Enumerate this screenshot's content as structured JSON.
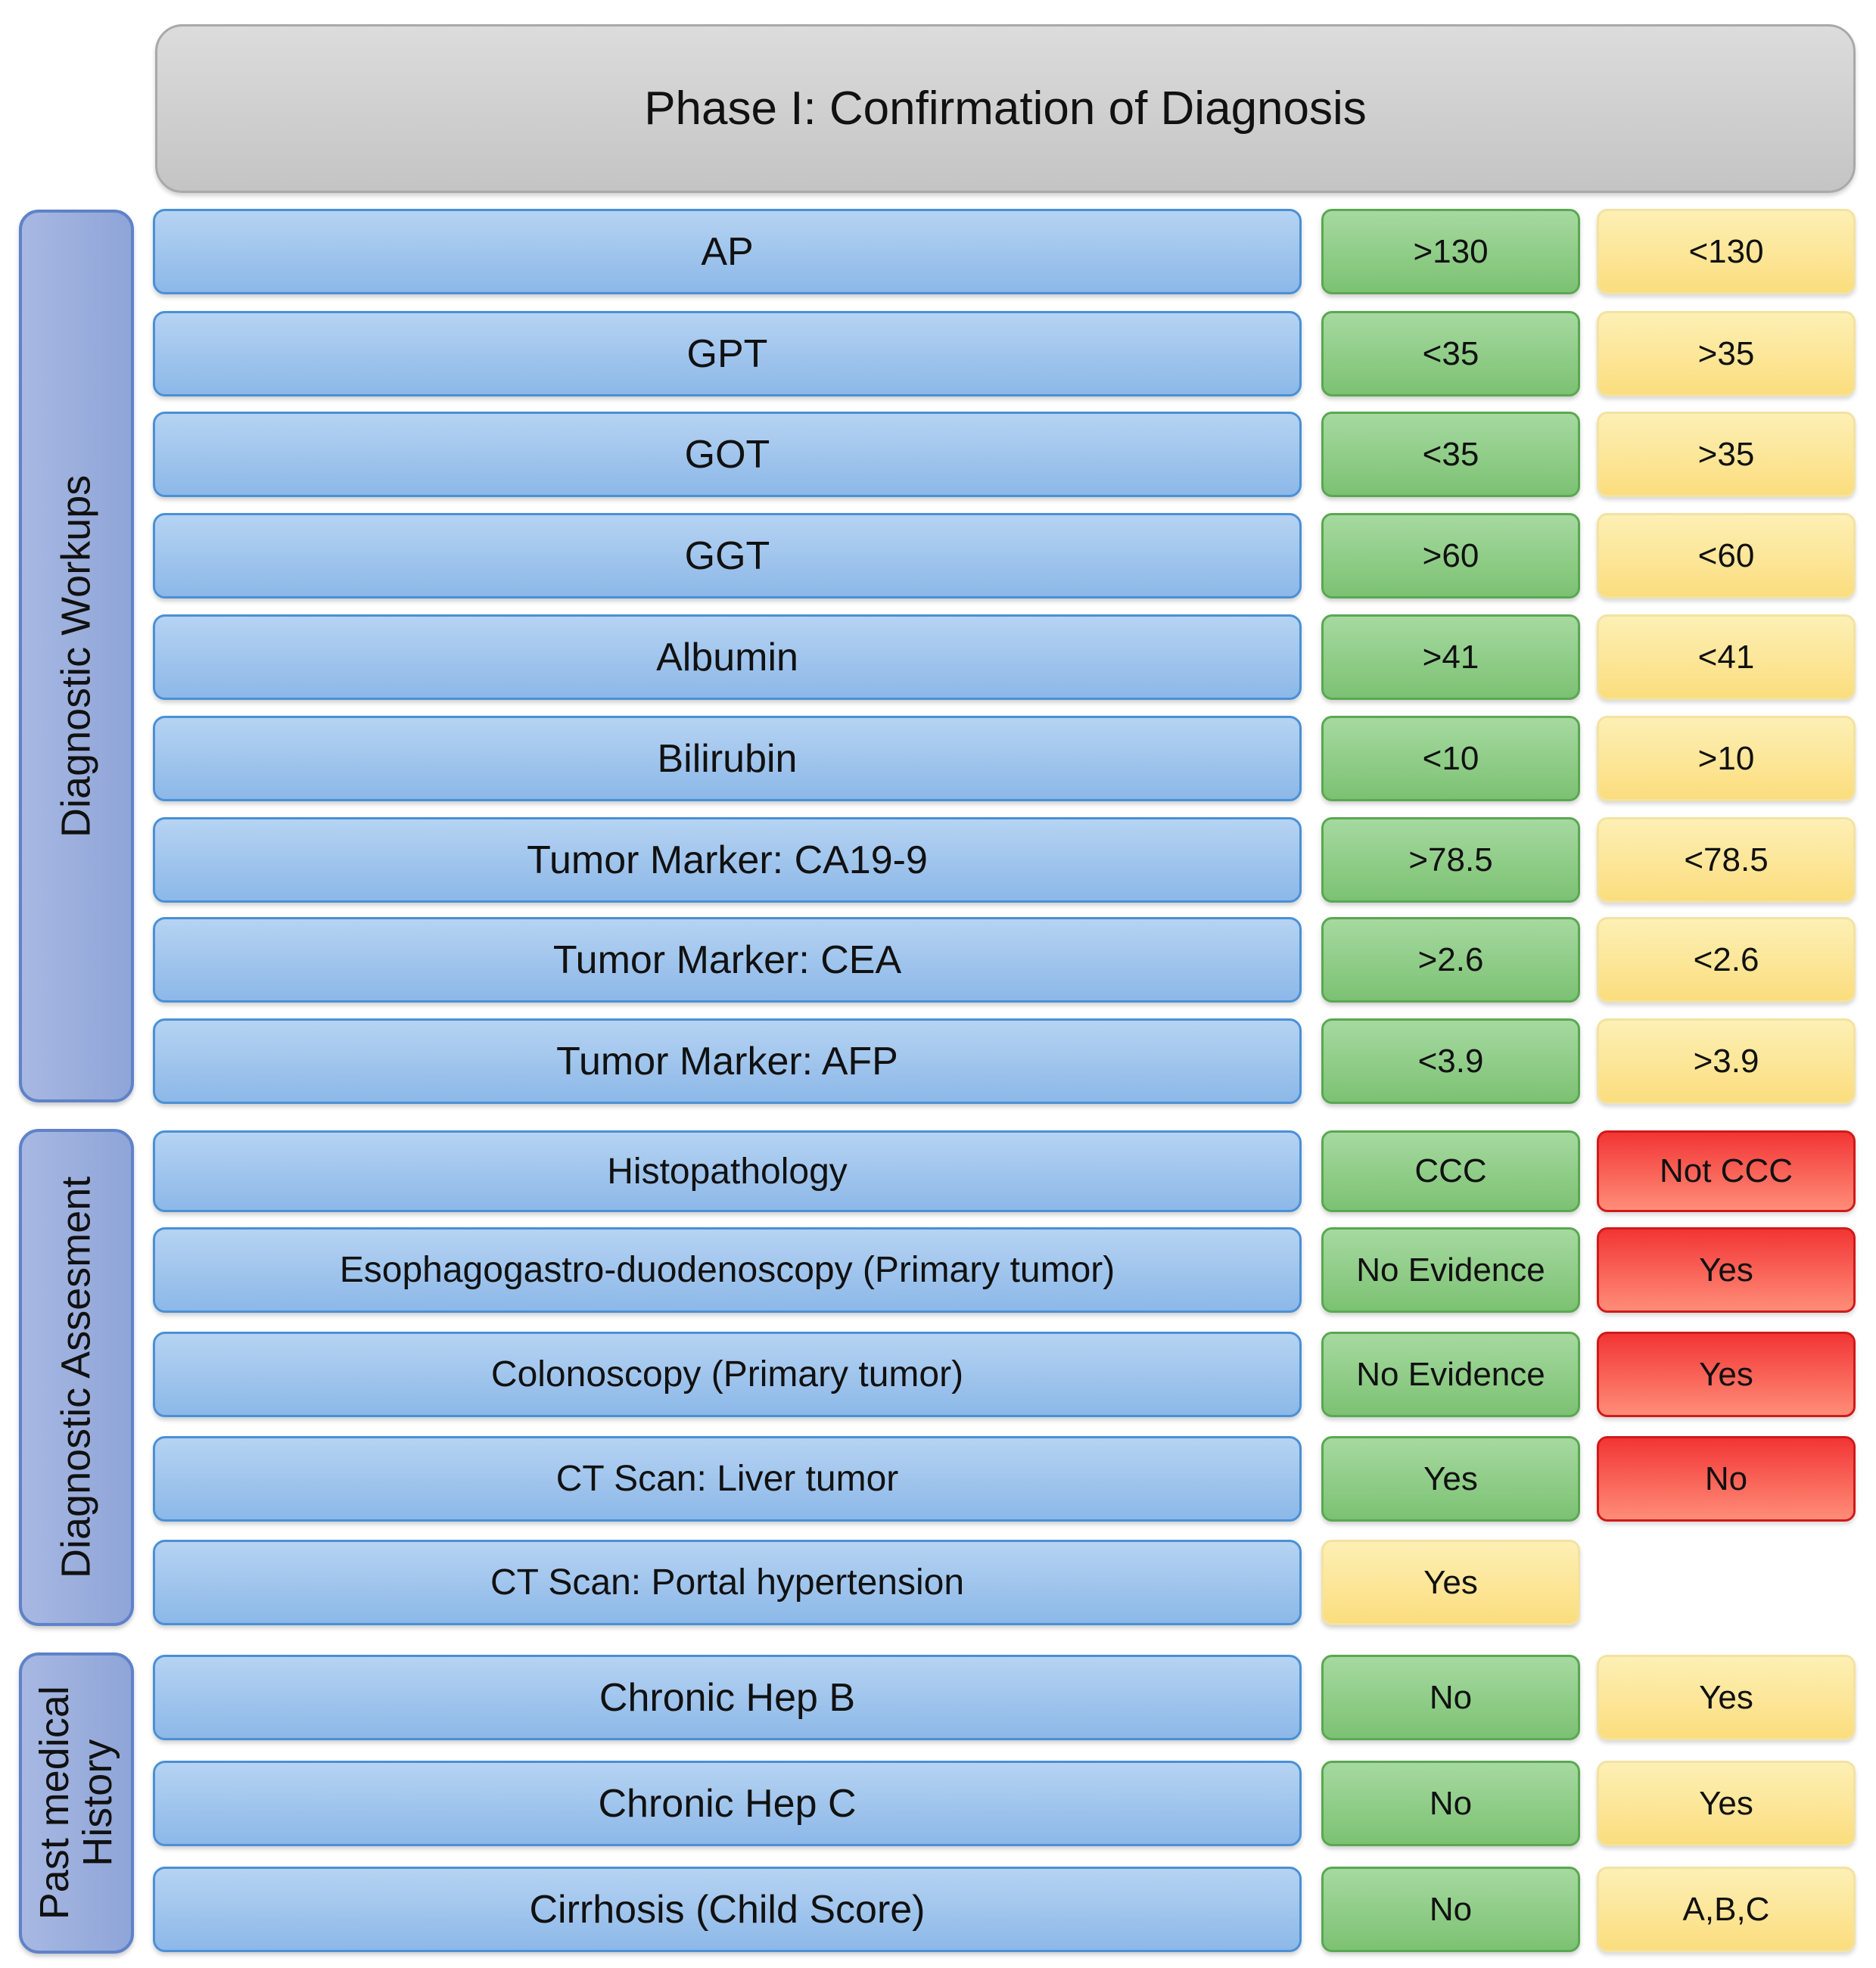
{
  "title": "Phase I: Confirmation of Diagnosis",
  "categories": [
    {
      "label": "Diagnostic Workups"
    },
    {
      "label": "Diagnostic Assesment"
    },
    {
      "label_line1": "Past medical",
      "label_line2": "History"
    }
  ],
  "rows": [
    {
      "label": "AP",
      "value1": ">130",
      "value2": "<130"
    },
    {
      "label": "GPT",
      "value1": "<35",
      "value2": ">35"
    },
    {
      "label": "GOT",
      "value1": "<35",
      "value2": ">35"
    },
    {
      "label": "GGT",
      "value1": ">60",
      "value2": "<60"
    },
    {
      "label": "Albumin",
      "value1": ">41",
      "value2": "<41"
    },
    {
      "label": "Bilirubin",
      "value1": "<10",
      "value2": ">10"
    },
    {
      "label": "Tumor Marker: CA19-9",
      "value1": ">78.5",
      "value2": "<78.5"
    },
    {
      "label": "Tumor Marker: CEA",
      "value1": ">2.6",
      "value2": "<2.6"
    },
    {
      "label": "Tumor Marker: AFP",
      "value1": "<3.9",
      "value2": ">3.9"
    },
    {
      "label": "Histopathology",
      "value1": "CCC",
      "value2": "Not CCC"
    },
    {
      "label": "Esophagogastro-duodenoscopy (Primary tumor)",
      "value1": "No Evidence",
      "value2": "Yes"
    },
    {
      "label": "Colonoscopy (Primary tumor)",
      "value1": "No Evidence",
      "value2": "Yes"
    },
    {
      "label": "CT Scan: Liver tumor",
      "value1": "Yes",
      "value2": "No"
    },
    {
      "label": "CT Scan: Portal hypertension",
      "value1": "Yes"
    },
    {
      "label": "Chronic Hep B",
      "value1": "No",
      "value2": "Yes"
    },
    {
      "label": "Chronic Hep C",
      "value1": "No",
      "value2": "Yes"
    },
    {
      "label": "Cirrhosis (Child Score)",
      "value1": "No",
      "value2": "A,B,C"
    }
  ],
  "colors": {
    "row_blue": "#8cb8e8",
    "normal_green": "#7cc273",
    "abnormal_yellow": "#fbdd7e",
    "exclusion_red": "#f23535"
  }
}
